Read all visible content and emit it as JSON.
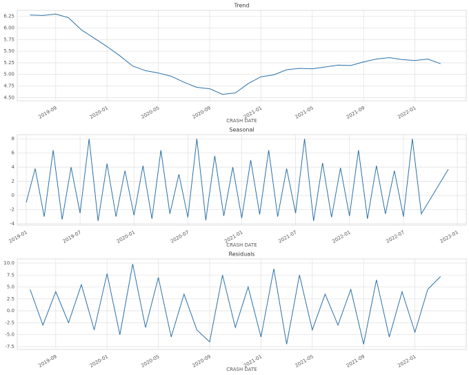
{
  "chart_data": [
    {
      "type": "line",
      "title": "Trend",
      "xlabel": "CRASH DATE",
      "color": "#2a6fa8",
      "grid": true,
      "x": [
        "2019-07",
        "2019-08",
        "2019-09",
        "2019-10",
        "2019-11",
        "2019-12",
        "2020-01",
        "2020-02",
        "2020-03",
        "2020-04",
        "2020-05",
        "2020-06",
        "2020-07",
        "2020-08",
        "2020-09",
        "2020-10",
        "2020-11",
        "2020-12",
        "2021-01",
        "2021-02",
        "2021-03",
        "2021-04",
        "2021-05",
        "2021-06",
        "2021-07",
        "2021-08",
        "2021-09",
        "2021-10",
        "2021-11",
        "2021-12",
        "2022-01",
        "2022-02",
        "2022-03"
      ],
      "values": [
        6.28,
        6.27,
        6.3,
        6.22,
        5.96,
        5.78,
        5.6,
        5.4,
        5.18,
        5.08,
        5.03,
        4.96,
        4.83,
        4.72,
        4.69,
        4.57,
        4.6,
        4.8,
        4.95,
        4.99,
        5.1,
        5.13,
        5.12,
        5.16,
        5.2,
        5.19,
        5.27,
        5.33,
        5.36,
        5.32,
        5.3,
        5.33,
        5.23
      ],
      "xlim": [
        "2019-06",
        "2022-05"
      ],
      "ylim": [
        4.43,
        6.38
      ],
      "xticks": [
        "2019-09",
        "2020-01",
        "2020-05",
        "2020-09",
        "2021-01",
        "2021-05",
        "2021-09",
        "2022-01"
      ],
      "yticks": [
        {
          "value": 4.5,
          "label": "4.50"
        },
        {
          "value": 4.75,
          "label": "4.75"
        },
        {
          "value": 5,
          "label": "5.00"
        },
        {
          "value": 5.25,
          "label": "5.25"
        },
        {
          "value": 5.5,
          "label": "5.50"
        },
        {
          "value": 5.75,
          "label": "5.75"
        },
        {
          "value": 6,
          "label": "6.00"
        },
        {
          "value": 6.25,
          "label": "6.25"
        }
      ]
    },
    {
      "type": "line",
      "title": "Seasonal",
      "xlabel": "CRASH DATE",
      "color": "#2a6fa8",
      "grid": true,
      "x": [
        "2019-01",
        "2019-02",
        "2019-03",
        "2019-04",
        "2019-05",
        "2019-06",
        "2019-07",
        "2019-08",
        "2019-09",
        "2019-10",
        "2019-11",
        "2019-12",
        "2020-01",
        "2020-02",
        "2020-03",
        "2020-04",
        "2020-05",
        "2020-06",
        "2020-07",
        "2020-08",
        "2020-09",
        "2020-10",
        "2020-11",
        "2020-12",
        "2021-01",
        "2021-02",
        "2021-03",
        "2021-04",
        "2021-05",
        "2021-06",
        "2021-07",
        "2021-08",
        "2021-09",
        "2021-10",
        "2021-11",
        "2021-12",
        "2022-01",
        "2022-02",
        "2022-03",
        "2022-04",
        "2022-05",
        "2022-06",
        "2022-07",
        "2022-08",
        "2022-09",
        "2022-12"
      ],
      "values": [
        -1,
        3.8,
        -3,
        6.4,
        -3.4,
        4,
        -2.5,
        8,
        -3.6,
        4.5,
        -3,
        3.5,
        -2.8,
        4.2,
        -3.3,
        6.4,
        -2.6,
        3,
        -3.1,
        8,
        -3.5,
        5.6,
        -2.9,
        4,
        -3.2,
        5,
        -2.7,
        6.4,
        -3,
        3.8,
        -2.5,
        8,
        -3.6,
        4.6,
        -3.1,
        3.9,
        -2.9,
        6.4,
        -3.3,
        4.2,
        -2.6,
        3.5,
        -3,
        8,
        -2.6,
        3.7
      ],
      "xlim": [
        "2018-12",
        "2023-02"
      ],
      "ylim": [
        -4.2,
        8.6
      ],
      "xticks": [
        "2019-01",
        "2019-07",
        "2020-01",
        "2020-07",
        "2021-01",
        "2021-07",
        "2022-01",
        "2022-07",
        "2023-01"
      ],
      "yticks": [
        -4,
        -2,
        0,
        2,
        4,
        6,
        8
      ]
    },
    {
      "type": "line",
      "title": "Residuals",
      "xlabel": "CRASH DATE",
      "color": "#2a6fa8",
      "grid": true,
      "x": [
        "2019-07",
        "2019-08",
        "2019-09",
        "2019-10",
        "2019-11",
        "2019-12",
        "2020-01",
        "2020-02",
        "2020-03",
        "2020-04",
        "2020-05",
        "2020-06",
        "2020-07",
        "2020-08",
        "2020-09",
        "2020-10",
        "2020-11",
        "2020-12",
        "2021-01",
        "2021-02",
        "2021-03",
        "2021-04",
        "2021-05",
        "2021-06",
        "2021-07",
        "2021-08",
        "2021-09",
        "2021-10",
        "2021-11",
        "2021-12",
        "2022-01",
        "2022-02",
        "2022-03"
      ],
      "values": [
        4.5,
        -3,
        4,
        -2.5,
        5.5,
        -4,
        7.8,
        -5,
        9.8,
        -3.5,
        7,
        -5.5,
        3.5,
        -4,
        -6.5,
        7.5,
        -3.5,
        5,
        -5.5,
        8.8,
        -7,
        7.5,
        -4,
        3.5,
        -3,
        4.5,
        -7,
        6.5,
        -5.5,
        4,
        -4.5,
        4.5,
        7.2
      ],
      "xlim": [
        "2019-06",
        "2022-05"
      ],
      "ylim": [
        -8.1,
        10.87
      ],
      "xticks": [
        "2019-09",
        "2020-01",
        "2020-05",
        "2020-09",
        "2021-01",
        "2021-05",
        "2021-09",
        "2022-01"
      ],
      "yticks": [
        {
          "value": -7.5,
          "label": "-7.5"
        },
        {
          "value": -5,
          "label": "-5.0"
        },
        {
          "value": -2.5,
          "label": "-2.5"
        },
        {
          "value": 0,
          "label": "0.0"
        },
        {
          "value": 2.5,
          "label": "2.5"
        },
        {
          "value": 5,
          "label": "5.0"
        },
        {
          "value": 7.5,
          "label": "7.5"
        },
        {
          "value": 10,
          "label": "10.0"
        }
      ]
    }
  ]
}
